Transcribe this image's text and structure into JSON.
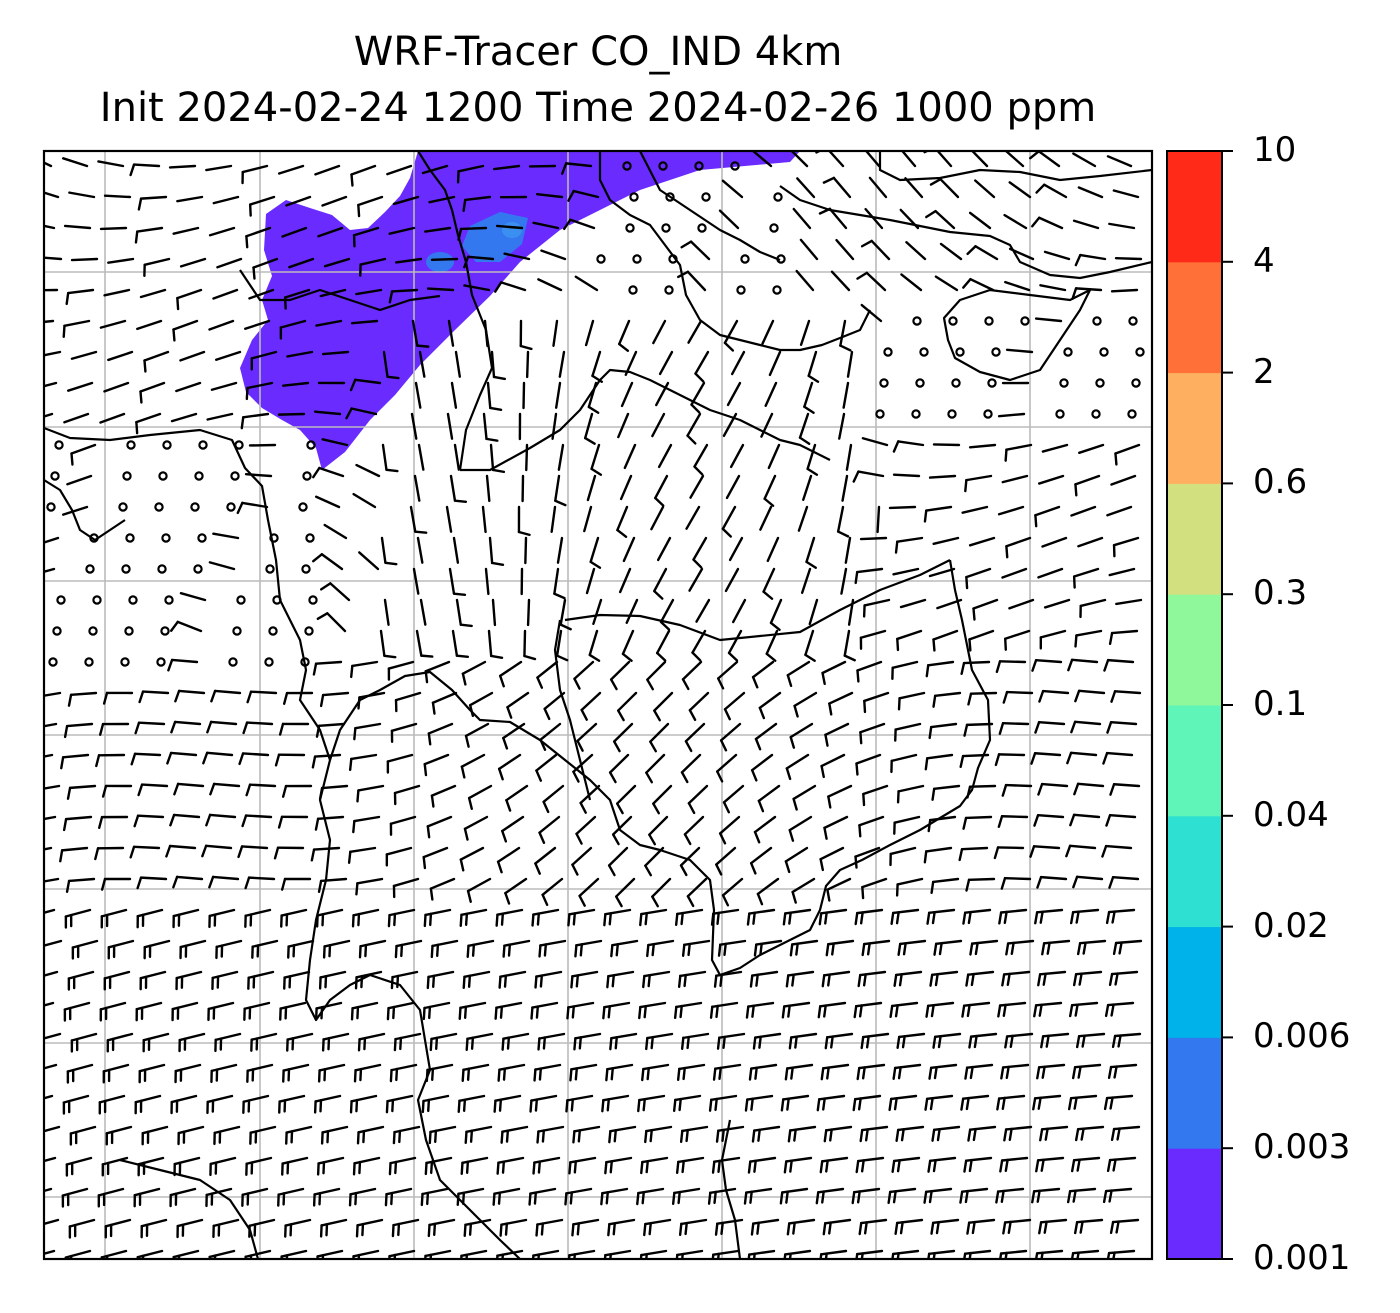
{
  "title": {
    "line1": "WRF-Tracer CO_IND 4km",
    "line2": "Init 2024-02-24 1200 Time 2024-02-26 1000 ppm"
  },
  "colorbar": {
    "levels": [
      "0.001",
      "0.003",
      "0.006",
      "0.02",
      "0.04",
      "0.1",
      "0.3",
      "0.6",
      "2",
      "4",
      "10"
    ],
    "colors": [
      "#6a2bff",
      "#3478f0",
      "#00b2ea",
      "#2de0d2",
      "#60f5b8",
      "#8ef89a",
      "#d2e080",
      "#feb060",
      "#ff7038",
      "#ff2a18"
    ]
  },
  "map": {
    "plume_color": "#6a2bff",
    "plume_core_color": "#3478f0",
    "gridline_color": "#bbbbbb",
    "barb_color": "#000000"
  }
}
